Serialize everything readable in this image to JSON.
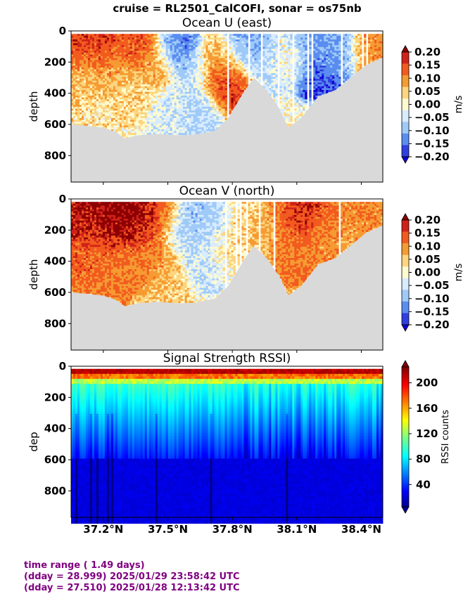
{
  "suptitle": "cruise = RL2501_CalCOFI,  sonar = os75nb",
  "footer": {
    "line1": "time range ( 1.49 days)",
    "line2": "(dday = 28.999) 2025/01/29 23:58:42 UTC",
    "line3": "(dday = 27.510) 2025/01/28 12:13:42 UTC"
  },
  "chart_data": [
    {
      "type": "heatmap",
      "title": "Ocean U (east)",
      "ylabel": "depth",
      "xlabel": "",
      "xlim": [
        37.05,
        38.5
      ],
      "ylim": [
        970,
        0
      ],
      "yticks": [
        0,
        200,
        400,
        600,
        800
      ],
      "xticks": [
        37.2,
        37.5,
        37.8,
        38.1,
        38.4
      ],
      "xtick_labels": [
        "37.2°N",
        "37.5°N",
        "37.8°N",
        "38.1°N",
        "38.4°N"
      ],
      "show_xtick_labels": false,
      "colorbar": {
        "label": "m/s",
        "ticks": [
          "0.20",
          "0.15",
          "0.10",
          "0.05",
          "0.00",
          "−0.05",
          "−0.10",
          "−0.15",
          "−0.20"
        ],
        "levels": [
          "#8b0000",
          "#d0221a",
          "#f25b1f",
          "#f59b32",
          "#fcd57e",
          "#fffbd0",
          "#d8ecff",
          "#9fcaf8",
          "#5a8def",
          "#2f3fe0",
          "#1400d8"
        ]
      },
      "bottom_depth": [
        {
          "lat": 37.05,
          "depth": 600
        },
        {
          "lat": 37.13,
          "depth": 610
        },
        {
          "lat": 37.2,
          "depth": 620
        },
        {
          "lat": 37.26,
          "depth": 650
        },
        {
          "lat": 37.3,
          "depth": 690
        },
        {
          "lat": 37.36,
          "depth": 670
        },
        {
          "lat": 37.45,
          "depth": 660
        },
        {
          "lat": 37.55,
          "depth": 670
        },
        {
          "lat": 37.63,
          "depth": 665
        },
        {
          "lat": 37.72,
          "depth": 640
        },
        {
          "lat": 37.78,
          "depth": 560
        },
        {
          "lat": 37.85,
          "depth": 400
        },
        {
          "lat": 37.9,
          "depth": 300
        },
        {
          "lat": 37.96,
          "depth": 380
        },
        {
          "lat": 38.02,
          "depth": 500
        },
        {
          "lat": 38.06,
          "depth": 620
        },
        {
          "lat": 38.12,
          "depth": 560
        },
        {
          "lat": 38.2,
          "depth": 420
        },
        {
          "lat": 38.28,
          "depth": 380
        },
        {
          "lat": 38.35,
          "depth": 300
        },
        {
          "lat": 38.42,
          "depth": 220
        },
        {
          "lat": 38.5,
          "depth": 170
        }
      ],
      "field": [
        {
          "lat": 37.1,
          "depth": 60,
          "v": 0.15
        },
        {
          "lat": 37.15,
          "depth": 100,
          "v": 0.12
        },
        {
          "lat": 37.2,
          "depth": 70,
          "v": 0.16
        },
        {
          "lat": 37.3,
          "depth": 80,
          "v": 0.12
        },
        {
          "lat": 37.38,
          "depth": 60,
          "v": 0.14
        },
        {
          "lat": 37.12,
          "depth": 300,
          "v": 0.05
        },
        {
          "lat": 37.25,
          "depth": 280,
          "v": 0.06
        },
        {
          "lat": 37.35,
          "depth": 400,
          "v": 0.03
        },
        {
          "lat": 37.45,
          "depth": 200,
          "v": 0.07
        },
        {
          "lat": 37.52,
          "depth": 80,
          "v": -0.1
        },
        {
          "lat": 37.56,
          "depth": 100,
          "v": -0.15
        },
        {
          "lat": 37.62,
          "depth": 250,
          "v": -0.04
        },
        {
          "lat": 37.66,
          "depth": 500,
          "v": -0.06
        },
        {
          "lat": 37.72,
          "depth": 150,
          "v": 0.05
        },
        {
          "lat": 37.76,
          "depth": 350,
          "v": 0.16
        },
        {
          "lat": 37.77,
          "depth": 250,
          "v": 0.12
        },
        {
          "lat": 37.82,
          "depth": 120,
          "v": -0.08
        },
        {
          "lat": 37.9,
          "depth": 80,
          "v": -0.1
        },
        {
          "lat": 38.0,
          "depth": 200,
          "v": -0.04
        },
        {
          "lat": 38.08,
          "depth": 150,
          "v": 0.02
        },
        {
          "lat": 38.15,
          "depth": 80,
          "v": -0.12
        },
        {
          "lat": 38.2,
          "depth": 250,
          "v": -0.16
        },
        {
          "lat": 38.25,
          "depth": 120,
          "v": -0.08
        },
        {
          "lat": 38.3,
          "depth": 80,
          "v": -0.14
        },
        {
          "lat": 38.4,
          "depth": 80,
          "v": 0.06
        },
        {
          "lat": 38.46,
          "depth": 60,
          "v": 0.1
        },
        {
          "lat": 37.18,
          "depth": 520,
          "v": 0.02
        },
        {
          "lat": 37.5,
          "depth": 550,
          "v": -0.03
        }
      ]
    },
    {
      "type": "heatmap",
      "title": "Ocean V (north)",
      "ylabel": "depth",
      "xlabel": "",
      "xlim": [
        37.05,
        38.5
      ],
      "ylim": [
        970,
        0
      ],
      "yticks": [
        0,
        200,
        400,
        600,
        800
      ],
      "xticks": [
        37.2,
        37.5,
        37.8,
        38.1,
        38.4
      ],
      "xtick_labels": [
        "37.2°N",
        "37.5°N",
        "37.8°N",
        "38.1°N",
        "38.4°N"
      ],
      "show_xtick_labels": false,
      "colorbar": {
        "label": "m/s",
        "ticks": [
          "0.20",
          "0.15",
          "0.10",
          "0.05",
          "0.00",
          "−0.05",
          "−0.10",
          "−0.15",
          "−0.20"
        ],
        "levels": [
          "#8b0000",
          "#d0221a",
          "#f25b1f",
          "#f59b32",
          "#fcd57e",
          "#fffbd0",
          "#d8ecff",
          "#9fcaf8",
          "#5a8def",
          "#2f3fe0",
          "#1400d8"
        ]
      },
      "bottom_depth": [
        {
          "lat": 37.05,
          "depth": 600
        },
        {
          "lat": 37.13,
          "depth": 610
        },
        {
          "lat": 37.2,
          "depth": 620
        },
        {
          "lat": 37.26,
          "depth": 650
        },
        {
          "lat": 37.3,
          "depth": 690
        },
        {
          "lat": 37.36,
          "depth": 670
        },
        {
          "lat": 37.45,
          "depth": 660
        },
        {
          "lat": 37.55,
          "depth": 670
        },
        {
          "lat": 37.63,
          "depth": 665
        },
        {
          "lat": 37.72,
          "depth": 640
        },
        {
          "lat": 37.78,
          "depth": 560
        },
        {
          "lat": 37.85,
          "depth": 400
        },
        {
          "lat": 37.9,
          "depth": 300
        },
        {
          "lat": 37.96,
          "depth": 380
        },
        {
          "lat": 38.02,
          "depth": 500
        },
        {
          "lat": 38.06,
          "depth": 620
        },
        {
          "lat": 38.12,
          "depth": 560
        },
        {
          "lat": 38.2,
          "depth": 420
        },
        {
          "lat": 38.28,
          "depth": 380
        },
        {
          "lat": 38.35,
          "depth": 300
        },
        {
          "lat": 38.42,
          "depth": 220
        },
        {
          "lat": 38.5,
          "depth": 170
        }
      ],
      "field": [
        {
          "lat": 37.1,
          "depth": 60,
          "v": 0.18
        },
        {
          "lat": 37.15,
          "depth": 150,
          "v": 0.16
        },
        {
          "lat": 37.22,
          "depth": 80,
          "v": 0.2
        },
        {
          "lat": 37.28,
          "depth": 180,
          "v": 0.18
        },
        {
          "lat": 37.35,
          "depth": 120,
          "v": 0.2
        },
        {
          "lat": 37.4,
          "depth": 250,
          "v": 0.14
        },
        {
          "lat": 37.15,
          "depth": 380,
          "v": 0.12
        },
        {
          "lat": 37.3,
          "depth": 400,
          "v": 0.1
        },
        {
          "lat": 37.45,
          "depth": 400,
          "v": 0.08
        },
        {
          "lat": 37.48,
          "depth": 80,
          "v": 0.14
        },
        {
          "lat": 37.55,
          "depth": 200,
          "v": -0.05
        },
        {
          "lat": 37.6,
          "depth": 100,
          "v": -0.08
        },
        {
          "lat": 37.66,
          "depth": 400,
          "v": -0.04
        },
        {
          "lat": 37.72,
          "depth": 120,
          "v": -0.06
        },
        {
          "lat": 37.78,
          "depth": 300,
          "v": 0.02
        },
        {
          "lat": 37.85,
          "depth": 120,
          "v": 0.03
        },
        {
          "lat": 37.95,
          "depth": 200,
          "v": 0.05
        },
        {
          "lat": 38.05,
          "depth": 120,
          "v": 0.12
        },
        {
          "lat": 38.08,
          "depth": 350,
          "v": 0.1
        },
        {
          "lat": 38.14,
          "depth": 100,
          "v": 0.18
        },
        {
          "lat": 38.2,
          "depth": 200,
          "v": 0.08
        },
        {
          "lat": 38.25,
          "depth": 80,
          "v": 0.14
        },
        {
          "lat": 38.32,
          "depth": 120,
          "v": 0.06
        },
        {
          "lat": 38.4,
          "depth": 80,
          "v": 0.1
        },
        {
          "lat": 38.46,
          "depth": 60,
          "v": 0.07
        },
        {
          "lat": 37.2,
          "depth": 560,
          "v": 0.1
        },
        {
          "lat": 37.5,
          "depth": 560,
          "v": 0.04
        }
      ]
    },
    {
      "type": "heatmap",
      "title": "Signal Strength RSSI)",
      "ylabel": "dep",
      "xlabel": "",
      "xlim": [
        37.05,
        38.5
      ],
      "ylim": [
        970,
        0
      ],
      "yticks": [
        0,
        200,
        400,
        600,
        800
      ],
      "xticks": [
        37.2,
        37.5,
        37.8,
        38.1,
        38.4
      ],
      "xtick_labels": [
        "37.2°N",
        "37.5°N",
        "37.8°N",
        "38.1°N",
        "38.4°N"
      ],
      "show_xtick_labels": true,
      "colorbar": {
        "label": "RSSI counts",
        "ticks": [
          "200",
          "160",
          "120",
          "80",
          "40"
        ],
        "tick_values": [
          200,
          160,
          120,
          80,
          40
        ],
        "range": [
          5,
          225
        ]
      }
    }
  ]
}
